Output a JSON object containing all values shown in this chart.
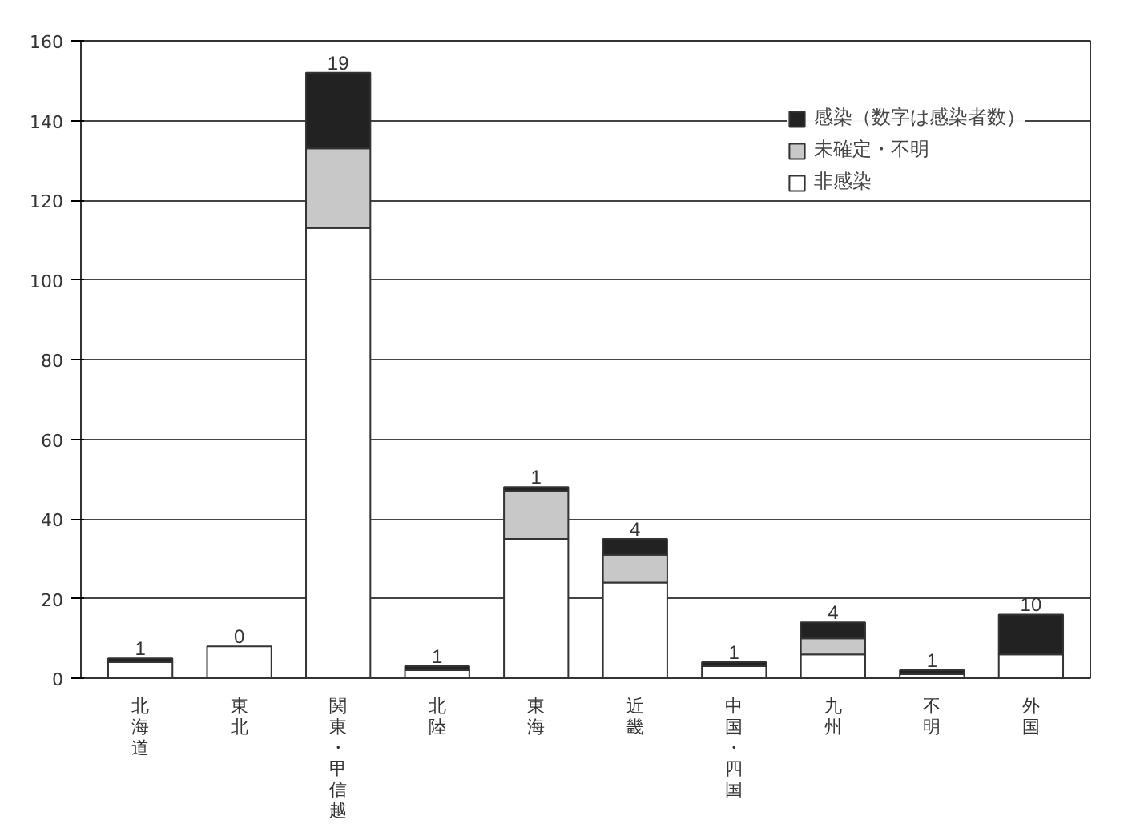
{
  "chart_data": {
    "type": "bar",
    "stacked": true,
    "categories": [
      "北海道",
      "東北",
      "関東・甲信越",
      "北陸",
      "東海",
      "近畿",
      "中国・四国",
      "九州",
      "不明",
      "外国"
    ],
    "series": [
      {
        "name": "非感染",
        "color": "#ffffff",
        "values": [
          4,
          8,
          113,
          2,
          35,
          24,
          3,
          6,
          1,
          6
        ]
      },
      {
        "name": "未確定・不明",
        "color": "#c8c8c8",
        "values": [
          0,
          0,
          20,
          0,
          12,
          7,
          0,
          4,
          0,
          0
        ]
      },
      {
        "name": "感染（数字は感染者数）",
        "color": "#222222",
        "values": [
          1,
          0,
          19,
          1,
          1,
          4,
          1,
          4,
          1,
          10
        ],
        "value_labels": [
          "1",
          "0",
          "19",
          "1",
          "1",
          "4",
          "1",
          "4",
          "1",
          "10"
        ]
      }
    ],
    "ylim": [
      0,
      160
    ],
    "yticks": [
      0,
      20,
      40,
      60,
      80,
      100,
      120,
      140,
      160
    ],
    "grid": "y",
    "legend": "top right"
  }
}
